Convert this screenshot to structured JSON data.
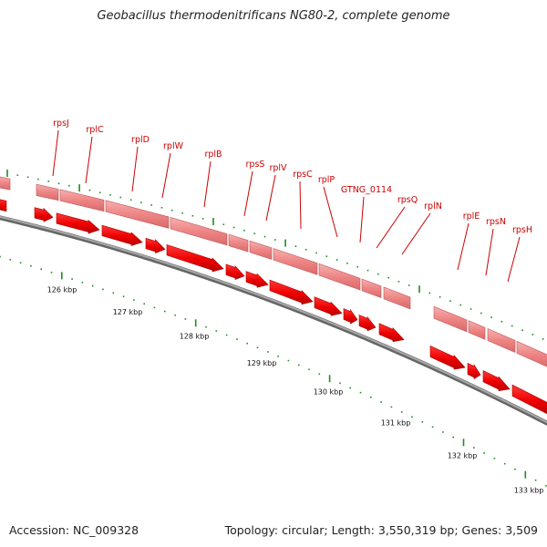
{
  "title": "Geobacillus thermodenitrificans NG80-2, complete genome",
  "footer": {
    "accession": "Accession: NC_009328",
    "topology": "Topology: circular; Length: 3,550,319 bp; Genes: 3,509"
  },
  "colors": {
    "forward_strand": "#f08080",
    "cds": "#ee0000",
    "gene_label": "#cc0000",
    "backbone": "#777777",
    "ticks": "#228b22"
  },
  "kbp_labels": [
    "126 kbp",
    "127 kbp",
    "128 kbp",
    "129 kbp",
    "130 kbp",
    "131 kbp",
    "132 kbp",
    "133 kbp"
  ],
  "gene_labels": [
    "rpsJ",
    "rplC",
    "rplD",
    "rplW",
    "rplB",
    "rpsS",
    "rplV",
    "rpsC",
    "rplP",
    "GTNG_0114",
    "rpsQ",
    "rplN",
    "rplE",
    "rpsN",
    "rpsH"
  ]
}
